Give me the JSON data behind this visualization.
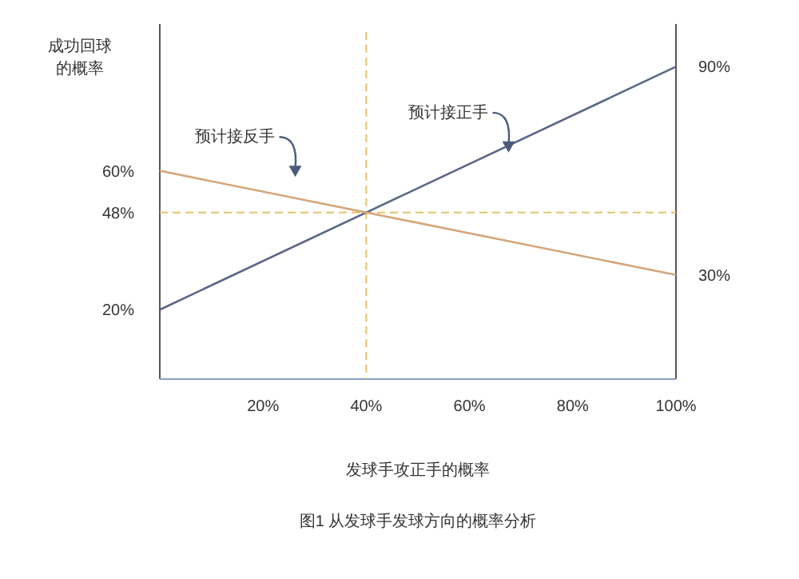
{
  "chart_data": {
    "type": "line",
    "xlabel": "发球手攻正手的概率",
    "ylabel": "成功回球的概率",
    "x": [
      0,
      100
    ],
    "xlim": [
      0,
      100
    ],
    "xticks": [
      {
        "value": 20,
        "label": "20%"
      },
      {
        "value": 40,
        "label": "40%"
      },
      {
        "value": 60,
        "label": "60%"
      },
      {
        "value": 80,
        "label": "80%"
      },
      {
        "value": 100,
        "label": "100%"
      }
    ],
    "ylim": [
      0,
      100
    ],
    "yticks": [
      {
        "value": 20,
        "label": "20%"
      },
      {
        "value": 48,
        "label": "48%"
      },
      {
        "value": 60,
        "label": "60%"
      }
    ],
    "y2lim": [
      0,
      100
    ],
    "y2ticks": [
      {
        "value": 30,
        "label": "30%"
      },
      {
        "value": 90,
        "label": "90%"
      }
    ],
    "series": [
      {
        "name": "预计接正手",
        "color": "#5b6788",
        "values": [
          20,
          90
        ]
      },
      {
        "name": "预计接反手",
        "color": "#d4a67c",
        "values": [
          60,
          30
        ]
      }
    ],
    "ref_lines": [
      {
        "axis": "y",
        "value": 48,
        "color": "#e2c46a",
        "line_style": "dashed"
      },
      {
        "axis": "x",
        "value": 40,
        "color": "#e2c46a",
        "line_style": "dashed"
      }
    ],
    "grid": false,
    "marker": "none",
    "line_style": "solid",
    "annotations": [
      "图1 从发球手发球方向的概率分析"
    ]
  }
}
